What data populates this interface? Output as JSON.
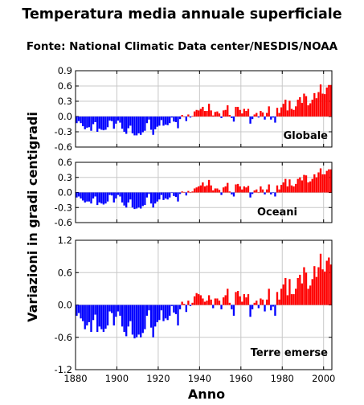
{
  "header": {
    "title": "Temperatura media annuale superficiale",
    "subtitle": "Fonte: National Climatic Data center/NESDIS/NOAA"
  },
  "colors": {
    "positive": "#ff0000",
    "negative": "#0000ff",
    "axis": "#000000",
    "grid": "#c8c8c8"
  },
  "chart_data": [
    {
      "type": "bar",
      "label": "Globale",
      "xlabel": "Anno",
      "ylabel": "Variazioni in gradi centigradi",
      "xlim": [
        1880,
        2004
      ],
      "ylim": [
        -0.6,
        0.9
      ],
      "yticks": [
        "0.9",
        "0.6",
        "0.3",
        "0.0",
        "-0.3",
        "-0.6"
      ],
      "grid": true,
      "x": [
        1880,
        1881,
        1882,
        1883,
        1884,
        1885,
        1886,
        1887,
        1888,
        1889,
        1890,
        1891,
        1892,
        1893,
        1894,
        1895,
        1896,
        1897,
        1898,
        1899,
        1900,
        1901,
        1902,
        1903,
        1904,
        1905,
        1906,
        1907,
        1908,
        1909,
        1910,
        1911,
        1912,
        1913,
        1914,
        1915,
        1916,
        1917,
        1918,
        1919,
        1920,
        1921,
        1922,
        1923,
        1924,
        1925,
        1926,
        1927,
        1928,
        1929,
        1930,
        1931,
        1932,
        1933,
        1934,
        1935,
        1936,
        1937,
        1938,
        1939,
        1940,
        1941,
        1942,
        1943,
        1944,
        1945,
        1946,
        1947,
        1948,
        1949,
        1950,
        1951,
        1952,
        1953,
        1954,
        1955,
        1956,
        1957,
        1958,
        1959,
        1960,
        1961,
        1962,
        1963,
        1964,
        1965,
        1966,
        1967,
        1968,
        1969,
        1970,
        1971,
        1972,
        1973,
        1974,
        1975,
        1976,
        1977,
        1978,
        1979,
        1980,
        1981,
        1982,
        1983,
        1984,
        1985,
        1986,
        1987,
        1988,
        1989,
        1990,
        1991,
        1992,
        1993,
        1994,
        1995,
        1996,
        1997,
        1998,
        1999,
        2000,
        2001,
        2002,
        2003
      ],
      "values": [
        -0.13,
        -0.09,
        -0.13,
        -0.19,
        -0.25,
        -0.22,
        -0.21,
        -0.28,
        -0.15,
        -0.11,
        -0.3,
        -0.24,
        -0.26,
        -0.27,
        -0.26,
        -0.21,
        -0.08,
        -0.09,
        -0.24,
        -0.14,
        -0.08,
        -0.12,
        -0.24,
        -0.3,
        -0.34,
        -0.23,
        -0.18,
        -0.33,
        -0.37,
        -0.37,
        -0.33,
        -0.36,
        -0.31,
        -0.28,
        -0.13,
        -0.06,
        -0.26,
        -0.36,
        -0.25,
        -0.2,
        -0.18,
        -0.07,
        -0.18,
        -0.16,
        -0.17,
        -0.13,
        -0.02,
        -0.1,
        -0.11,
        -0.23,
        -0.05,
        0.03,
        0.0,
        -0.09,
        0.04,
        -0.02,
        0.01,
        0.1,
        0.13,
        0.12,
        0.15,
        0.19,
        0.11,
        0.11,
        0.25,
        0.12,
        0.02,
        0.09,
        0.1,
        0.06,
        -0.03,
        0.12,
        0.13,
        0.22,
        0.03,
        -0.03,
        -0.1,
        0.19,
        0.19,
        0.13,
        0.06,
        0.15,
        0.11,
        0.15,
        -0.14,
        -0.05,
        0.04,
        0.07,
        -0.02,
        0.11,
        0.08,
        -0.06,
        0.07,
        0.2,
        -0.06,
        -0.02,
        -0.12,
        0.17,
        0.07,
        0.18,
        0.25,
        0.33,
        0.12,
        0.31,
        0.15,
        0.13,
        0.2,
        0.33,
        0.38,
        0.27,
        0.45,
        0.4,
        0.22,
        0.26,
        0.33,
        0.46,
        0.36,
        0.48,
        0.63,
        0.45,
        0.44,
        0.57,
        0.62,
        0.62
      ]
    },
    {
      "type": "bar",
      "label": "Oceani",
      "xlim": [
        1880,
        2004
      ],
      "ylim": [
        -0.6,
        0.6
      ],
      "yticks": [
        "0.6",
        "0.3",
        "0.0",
        "-0.3",
        "-0.6"
      ],
      "grid": true,
      "x": [
        1880,
        1881,
        1882,
        1883,
        1884,
        1885,
        1886,
        1887,
        1888,
        1889,
        1890,
        1891,
        1892,
        1893,
        1894,
        1895,
        1896,
        1897,
        1898,
        1899,
        1900,
        1901,
        1902,
        1903,
        1904,
        1905,
        1906,
        1907,
        1908,
        1909,
        1910,
        1911,
        1912,
        1913,
        1914,
        1915,
        1916,
        1917,
        1918,
        1919,
        1920,
        1921,
        1922,
        1923,
        1924,
        1925,
        1926,
        1927,
        1928,
        1929,
        1930,
        1931,
        1932,
        1933,
        1934,
        1935,
        1936,
        1937,
        1938,
        1939,
        1940,
        1941,
        1942,
        1943,
        1944,
        1945,
        1946,
        1947,
        1948,
        1949,
        1950,
        1951,
        1952,
        1953,
        1954,
        1955,
        1956,
        1957,
        1958,
        1959,
        1960,
        1961,
        1962,
        1963,
        1964,
        1965,
        1966,
        1967,
        1968,
        1969,
        1970,
        1971,
        1972,
        1973,
        1974,
        1975,
        1976,
        1977,
        1978,
        1979,
        1980,
        1981,
        1982,
        1983,
        1984,
        1985,
        1986,
        1987,
        1988,
        1989,
        1990,
        1991,
        1992,
        1993,
        1994,
        1995,
        1996,
        1997,
        1998,
        1999,
        2000,
        2001,
        2002,
        2003
      ],
      "values": [
        -0.1,
        -0.08,
        -0.12,
        -0.16,
        -0.2,
        -0.18,
        -0.18,
        -0.22,
        -0.12,
        -0.08,
        -0.25,
        -0.2,
        -0.22,
        -0.24,
        -0.22,
        -0.18,
        -0.05,
        -0.06,
        -0.2,
        -0.12,
        -0.05,
        -0.08,
        -0.2,
        -0.26,
        -0.3,
        -0.2,
        -0.14,
        -0.3,
        -0.33,
        -0.32,
        -0.3,
        -0.32,
        -0.27,
        -0.25,
        -0.1,
        -0.03,
        -0.22,
        -0.3,
        -0.22,
        -0.18,
        -0.14,
        -0.05,
        -0.15,
        -0.12,
        -0.14,
        -0.1,
        -0.01,
        -0.07,
        -0.09,
        -0.18,
        -0.03,
        0.02,
        0.01,
        -0.06,
        0.03,
        0.0,
        0.02,
        0.08,
        0.1,
        0.12,
        0.14,
        0.2,
        0.12,
        0.14,
        0.25,
        0.14,
        0.04,
        0.08,
        0.08,
        0.05,
        -0.05,
        0.1,
        0.12,
        0.19,
        0.02,
        -0.04,
        -0.08,
        0.16,
        0.17,
        0.12,
        0.06,
        0.12,
        0.1,
        0.13,
        -0.1,
        -0.03,
        0.04,
        0.06,
        0.0,
        0.12,
        0.06,
        -0.04,
        0.06,
        0.16,
        -0.04,
        -0.01,
        -0.08,
        0.14,
        0.06,
        0.15,
        0.2,
        0.27,
        0.12,
        0.26,
        0.14,
        0.12,
        0.17,
        0.27,
        0.3,
        0.24,
        0.35,
        0.34,
        0.2,
        0.22,
        0.27,
        0.36,
        0.3,
        0.4,
        0.48,
        0.36,
        0.36,
        0.43,
        0.46,
        0.46
      ]
    },
    {
      "type": "bar",
      "label": "Terre emerse",
      "xlim": [
        1880,
        2004
      ],
      "ylim": [
        -1.2,
        1.2
      ],
      "yticks": [
        "1.2",
        "0.6",
        "0.0",
        "-0.6",
        "-1.2"
      ],
      "xticks": [
        "1880",
        "1900",
        "1920",
        "1940",
        "1960",
        "1980",
        "2000"
      ],
      "grid": true,
      "x": [
        1880,
        1881,
        1882,
        1883,
        1884,
        1885,
        1886,
        1887,
        1888,
        1889,
        1890,
        1891,
        1892,
        1893,
        1894,
        1895,
        1896,
        1897,
        1898,
        1899,
        1900,
        1901,
        1902,
        1903,
        1904,
        1905,
        1906,
        1907,
        1908,
        1909,
        1910,
        1911,
        1912,
        1913,
        1914,
        1915,
        1916,
        1917,
        1918,
        1919,
        1920,
        1921,
        1922,
        1923,
        1924,
        1925,
        1926,
        1927,
        1928,
        1929,
        1930,
        1931,
        1932,
        1933,
        1934,
        1935,
        1936,
        1937,
        1938,
        1939,
        1940,
        1941,
        1942,
        1943,
        1944,
        1945,
        1946,
        1947,
        1948,
        1949,
        1950,
        1951,
        1952,
        1953,
        1954,
        1955,
        1956,
        1957,
        1958,
        1959,
        1960,
        1961,
        1962,
        1963,
        1964,
        1965,
        1966,
        1967,
        1968,
        1969,
        1970,
        1971,
        1972,
        1973,
        1974,
        1975,
        1976,
        1977,
        1978,
        1979,
        1980,
        1981,
        1982,
        1983,
        1984,
        1985,
        1986,
        1987,
        1988,
        1989,
        1990,
        1991,
        1992,
        1993,
        1994,
        1995,
        1996,
        1997,
        1998,
        1999,
        2000,
        2001,
        2002,
        2003
      ],
      "values": [
        -0.2,
        -0.15,
        -0.25,
        -0.3,
        -0.45,
        -0.38,
        -0.32,
        -0.5,
        -0.28,
        -0.18,
        -0.5,
        -0.4,
        -0.45,
        -0.5,
        -0.44,
        -0.38,
        -0.12,
        -0.15,
        -0.38,
        -0.22,
        -0.12,
        -0.2,
        -0.4,
        -0.5,
        -0.58,
        -0.4,
        -0.3,
        -0.55,
        -0.62,
        -0.6,
        -0.55,
        -0.6,
        -0.52,
        -0.45,
        -0.2,
        -0.1,
        -0.42,
        -0.6,
        -0.4,
        -0.32,
        -0.28,
        -0.1,
        -0.3,
        -0.25,
        -0.28,
        -0.2,
        -0.02,
        -0.14,
        -0.17,
        -0.38,
        -0.08,
        0.06,
        0.02,
        -0.13,
        0.08,
        -0.02,
        0.04,
        0.16,
        0.22,
        0.2,
        0.18,
        0.12,
        0.06,
        0.08,
        0.18,
        0.1,
        -0.06,
        0.12,
        0.12,
        0.08,
        -0.08,
        0.14,
        0.18,
        0.3,
        0.04,
        -0.08,
        -0.2,
        0.24,
        0.26,
        0.16,
        0.06,
        0.2,
        0.14,
        0.2,
        -0.22,
        -0.08,
        0.04,
        0.08,
        -0.06,
        0.12,
        0.1,
        -0.12,
        0.1,
        0.3,
        -0.1,
        -0.03,
        -0.2,
        0.24,
        0.1,
        0.3,
        0.38,
        0.5,
        0.18,
        0.48,
        0.2,
        0.2,
        0.3,
        0.5,
        0.56,
        0.4,
        0.7,
        0.6,
        0.3,
        0.36,
        0.48,
        0.72,
        0.52,
        0.7,
        0.95,
        0.66,
        0.62,
        0.82,
        0.88,
        0.75
      ]
    }
  ]
}
